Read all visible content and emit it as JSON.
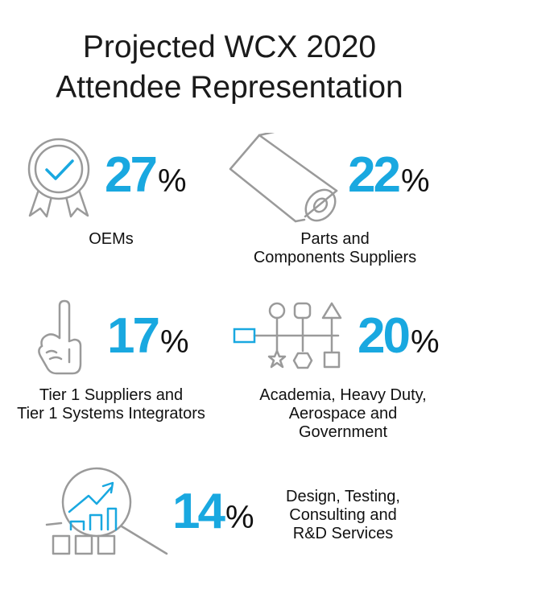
{
  "title": {
    "line1": "Projected WCX 2020",
    "line2": "Attendee Representation"
  },
  "accent_color": "#19a8e0",
  "icon_stroke_color": "#9a9a9a",
  "stats": [
    {
      "value": "27",
      "unit": "%",
      "label_lines": [
        "OEMs"
      ],
      "icon": "award-ribbon-checkmark-icon"
    },
    {
      "value": "22",
      "unit": "%",
      "label_lines": [
        "Parts and",
        "Components Suppliers"
      ],
      "icon": "rolled-sheet-icon"
    },
    {
      "value": "17",
      "unit": "%",
      "label_lines": [
        "Tier 1 Suppliers and",
        "Tier 1 Systems Integrators"
      ],
      "icon": "number-one-hand-icon"
    },
    {
      "value": "20",
      "unit": "%",
      "label_lines": [
        "Academia, Heavy Duty,",
        "Aerospace and",
        "Government"
      ],
      "icon": "shapes-flowchart-icon"
    },
    {
      "value": "14",
      "unit": "%",
      "label_lines": [
        "Design, Testing,",
        "Consulting and",
        "R&D Services"
      ],
      "icon": "magnifier-growth-chart-icon"
    }
  ]
}
